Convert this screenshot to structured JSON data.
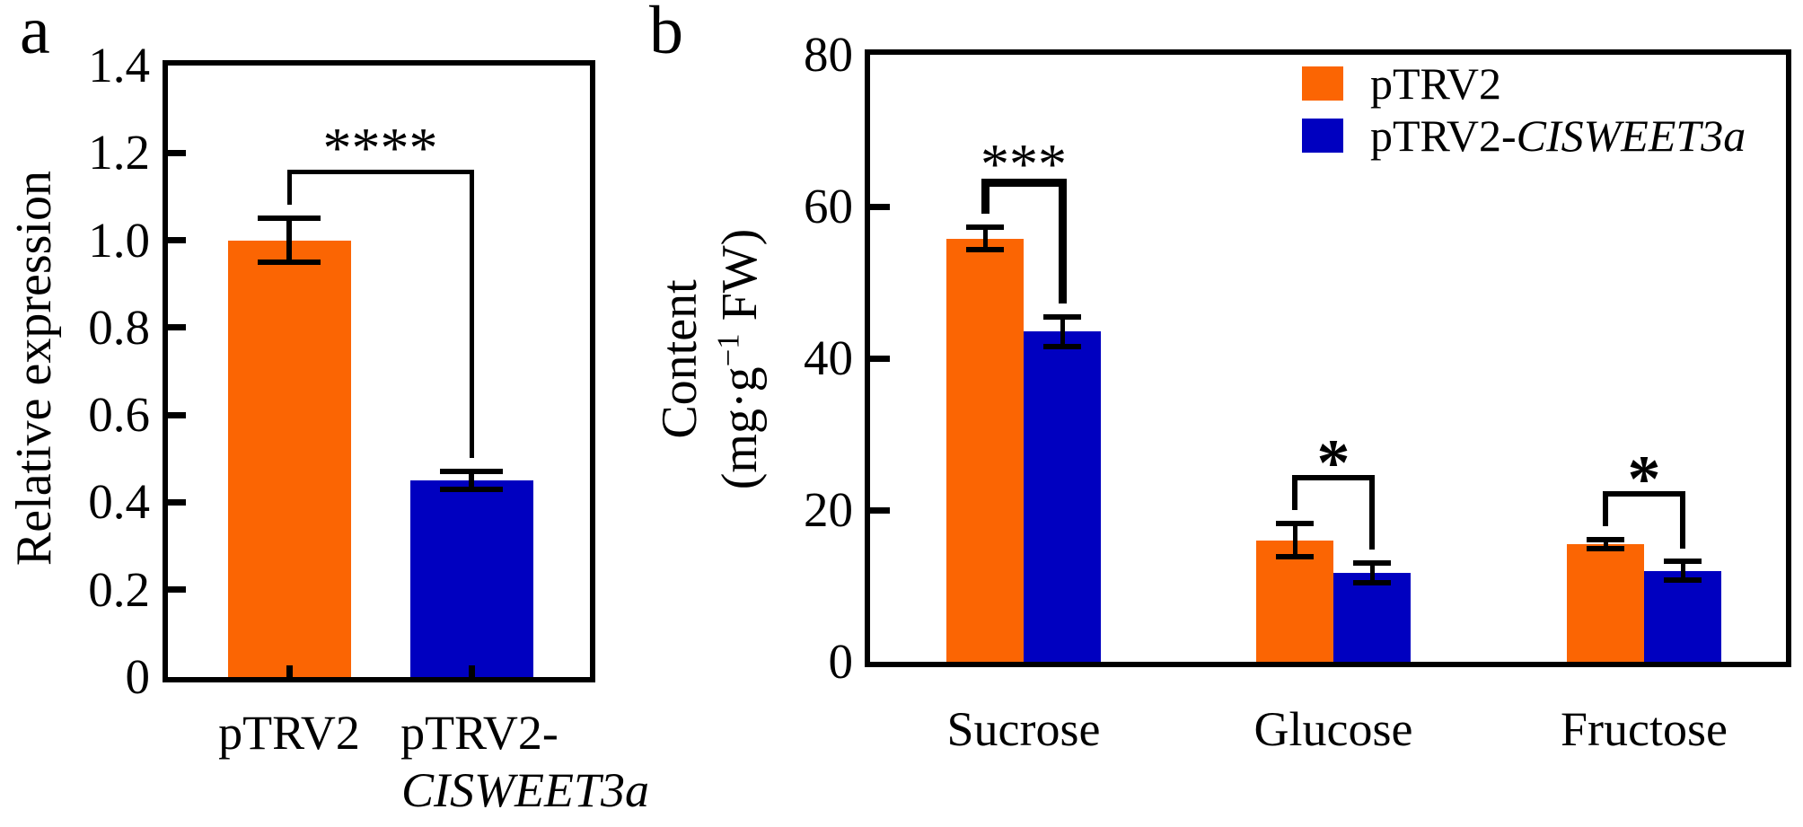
{
  "panels": [
    {
      "label": "a"
    },
    {
      "label": "b"
    }
  ],
  "colors": {
    "orange": "#fb6503",
    "blue": "#0000c0",
    "axis": "#000000"
  },
  "chart_data": [
    {
      "type": "bar",
      "panel": "a",
      "ylabel": "Relative expression",
      "ylim": [
        0,
        1.4
      ],
      "yticks": [
        "0",
        "0.2",
        "0.4",
        "0.6",
        "0.8",
        "1.0",
        "1.2",
        "1.4"
      ],
      "grid": false,
      "categories": [
        {
          "lines": [
            {
              "text": "pTRV2",
              "italic": false
            }
          ]
        },
        {
          "lines": [
            {
              "text": "pTRV2-",
              "italic": false
            },
            {
              "text": "CISWEET3a",
              "italic": true
            }
          ]
        }
      ],
      "bars": [
        {
          "category": "pTRV2",
          "value": 1.0,
          "error": 0.05,
          "color": "#fb6503"
        },
        {
          "category": "pTRV2-CISWEET3a",
          "value": 0.45,
          "error": 0.02,
          "color": "#0000c0"
        }
      ],
      "significance": [
        {
          "between": [
            "pTRV2",
            "pTRV2-CISWEET3a"
          ],
          "label": "****"
        }
      ]
    },
    {
      "type": "bar",
      "panel": "b",
      "ylabel": "Content (mg·g⁻¹ FW)",
      "ylabel_line1": "Content",
      "ylabel_line2_pre": "(mg·g",
      "ylabel_line2_sup": "−1",
      "ylabel_line2_post": " FW)",
      "ylim": [
        0,
        80
      ],
      "yticks": [
        "0",
        "20",
        "40",
        "60",
        "80"
      ],
      "grid": false,
      "legend_position": "top-right",
      "categories": [
        "Sucrose",
        "Glucose",
        "Fructose"
      ],
      "series": [
        {
          "name": "pTRV2",
          "name_prefix": "pTRV2",
          "name_gene": "",
          "color": "#fb6503",
          "values": [
            55.8,
            16.0,
            15.5
          ],
          "errors": [
            1.5,
            2.2,
            0.6
          ]
        },
        {
          "name": "pTRV2-CISWEET3a",
          "name_prefix": "pTRV2-",
          "name_gene": "CISWEET3a",
          "color": "#0000c0",
          "values": [
            43.5,
            11.7,
            12.0
          ],
          "errors": [
            2.0,
            1.3,
            1.2
          ]
        }
      ],
      "significance": [
        {
          "category": "Sucrose",
          "label": "***"
        },
        {
          "category": "Glucose",
          "label": "*"
        },
        {
          "category": "Fructose",
          "label": "*"
        }
      ]
    }
  ]
}
